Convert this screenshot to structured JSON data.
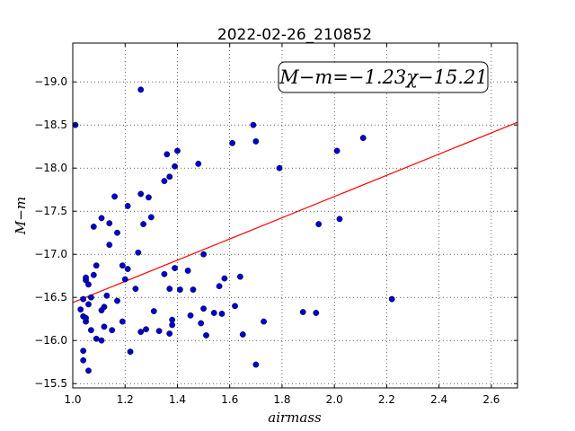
{
  "chart_data": {
    "type": "scatter",
    "title": "2022-02-26_210852",
    "xlabel": "airmass",
    "ylabel": "M−m",
    "xlim": [
      1.0,
      2.7
    ],
    "ylim": [
      -19.45,
      -15.45
    ],
    "y_inverted": true,
    "grid": true,
    "x_ticks": [
      "1.0",
      "1.2",
      "1.4",
      "1.6",
      "1.8",
      "2.0",
      "2.2",
      "2.4",
      "2.6"
    ],
    "y_ticks": [
      "−15.5",
      "−16.0",
      "−16.5",
      "−17.0",
      "−17.5",
      "−18.0",
      "−18.5",
      "−19.0"
    ],
    "annotation": "M−m=−1.23χ−15.21",
    "fit": {
      "slope": -1.23,
      "intercept": -15.21
    },
    "colors": {
      "points": "#0000cc",
      "fit_line": "#ff0000"
    },
    "points": [
      [
        1.01,
        -18.5
      ],
      [
        1.03,
        -16.36
      ],
      [
        1.04,
        -16.28
      ],
      [
        1.04,
        -16.48
      ],
      [
        1.04,
        -15.77
      ],
      [
        1.04,
        -15.88
      ],
      [
        1.05,
        -16.22
      ],
      [
        1.05,
        -16.26
      ],
      [
        1.05,
        -16.7
      ],
      [
        1.05,
        -16.73
      ],
      [
        1.06,
        -15.65
      ],
      [
        1.06,
        -16.42
      ],
      [
        1.06,
        -16.65
      ],
      [
        1.07,
        -16.12
      ],
      [
        1.07,
        -16.5
      ],
      [
        1.08,
        -16.76
      ],
      [
        1.08,
        -17.32
      ],
      [
        1.09,
        -16.02
      ],
      [
        1.09,
        -16.87
      ],
      [
        1.11,
        -16.0
      ],
      [
        1.11,
        -17.42
      ],
      [
        1.11,
        -16.35
      ],
      [
        1.12,
        -16.16
      ],
      [
        1.12,
        -16.39
      ],
      [
        1.13,
        -16.52
      ],
      [
        1.14,
        -17.36
      ],
      [
        1.14,
        -17.11
      ],
      [
        1.15,
        -16.12
      ],
      [
        1.16,
        -17.67
      ],
      [
        1.17,
        -17.25
      ],
      [
        1.17,
        -16.46
      ],
      [
        1.19,
        -16.87
      ],
      [
        1.19,
        -16.22
      ],
      [
        1.2,
        -16.71
      ],
      [
        1.21,
        -16.83
      ],
      [
        1.21,
        -17.56
      ],
      [
        1.22,
        -15.87
      ],
      [
        1.24,
        -16.6
      ],
      [
        1.25,
        -17.02
      ],
      [
        1.26,
        -17.7
      ],
      [
        1.26,
        -18.91
      ],
      [
        1.26,
        -16.1
      ],
      [
        1.27,
        -17.35
      ],
      [
        1.28,
        -16.13
      ],
      [
        1.29,
        -17.66
      ],
      [
        1.3,
        -17.43
      ],
      [
        1.31,
        -16.34
      ],
      [
        1.33,
        -16.11
      ],
      [
        1.35,
        -16.77
      ],
      [
        1.35,
        -17.85
      ],
      [
        1.36,
        -18.16
      ],
      [
        1.37,
        -17.9
      ],
      [
        1.37,
        -16.08
      ],
      [
        1.37,
        -16.6
      ],
      [
        1.38,
        -16.18
      ],
      [
        1.38,
        -16.24
      ],
      [
        1.39,
        -16.84
      ],
      [
        1.39,
        -18.02
      ],
      [
        1.4,
        -18.2
      ],
      [
        1.41,
        -16.59
      ],
      [
        1.44,
        -16.81
      ],
      [
        1.45,
        -16.29
      ],
      [
        1.46,
        -16.59
      ],
      [
        1.48,
        -18.05
      ],
      [
        1.49,
        -16.2
      ],
      [
        1.5,
        -17.0
      ],
      [
        1.5,
        -16.37
      ],
      [
        1.51,
        -16.06
      ],
      [
        1.54,
        -16.32
      ],
      [
        1.56,
        -16.63
      ],
      [
        1.57,
        -16.31
      ],
      [
        1.58,
        -16.72
      ],
      [
        1.61,
        -18.29
      ],
      [
        1.62,
        -16.4
      ],
      [
        1.64,
        -16.74
      ],
      [
        1.65,
        -16.07
      ],
      [
        1.69,
        -18.5
      ],
      [
        1.7,
        -18.31
      ],
      [
        1.7,
        -15.72
      ],
      [
        1.73,
        -16.22
      ],
      [
        1.79,
        -18.0
      ],
      [
        1.88,
        -16.33
      ],
      [
        1.93,
        -16.32
      ],
      [
        1.94,
        -17.35
      ],
      [
        2.01,
        -18.2
      ],
      [
        2.02,
        -17.41
      ],
      [
        2.11,
        -18.35
      ],
      [
        2.22,
        -16.48
      ]
    ]
  }
}
